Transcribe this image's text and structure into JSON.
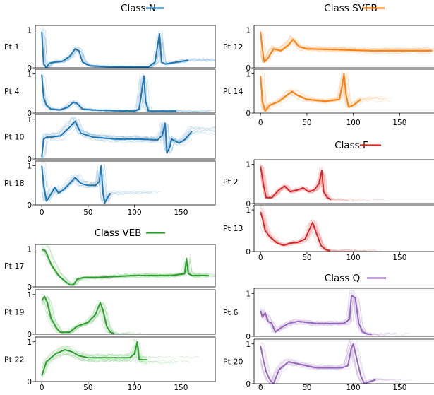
{
  "chart_data": [
    {
      "type": "line",
      "title": "Class N",
      "color": "#1f77b4",
      "xticks": [
        0,
        50,
        100,
        150
      ],
      "xlim": [
        -7,
        187
      ],
      "ylim": [
        0,
        1.12
      ],
      "yticks": [
        0,
        1
      ],
      "panels": [
        {
          "label": "Pt 1",
          "ylim": [
            0,
            1.12
          ],
          "mean": [
            [
              0,
              0.95
            ],
            [
              2,
              0.1
            ],
            [
              5,
              0.0
            ],
            [
              8,
              0.12
            ],
            [
              14,
              0.15
            ],
            [
              22,
              0.17
            ],
            [
              30,
              0.3
            ],
            [
              36,
              0.5
            ],
            [
              40,
              0.45
            ],
            [
              44,
              0.15
            ],
            [
              52,
              0.05
            ],
            [
              70,
              0.03
            ],
            [
              100,
              0.02
            ],
            [
              115,
              0.02
            ],
            [
              122,
              0.15
            ],
            [
              125,
              0.6
            ],
            [
              127,
              0.9
            ],
            [
              129,
              0.15
            ],
            [
              133,
              0.1
            ],
            [
              145,
              0.15
            ],
            [
              158,
              0.2
            ]
          ]
        },
        {
          "label": "Pt 4",
          "ylim": [
            0,
            1.12
          ],
          "mean": [
            [
              0,
              0.98
            ],
            [
              2,
              0.4
            ],
            [
              5,
              0.2
            ],
            [
              10,
              0.1
            ],
            [
              20,
              0.08
            ],
            [
              28,
              0.15
            ],
            [
              34,
              0.28
            ],
            [
              38,
              0.25
            ],
            [
              44,
              0.1
            ],
            [
              55,
              0.08
            ],
            [
              80,
              0.06
            ],
            [
              100,
              0.05
            ],
            [
              105,
              0.1
            ],
            [
              108,
              0.6
            ],
            [
              110,
              0.95
            ],
            [
              112,
              0.3
            ],
            [
              115,
              0.05
            ],
            [
              130,
              0.05
            ],
            [
              145,
              0.05
            ]
          ]
        },
        {
          "label": "Pt 10",
          "ylim": [
            0,
            1.12
          ],
          "mean": [
            [
              0,
              0.05
            ],
            [
              2,
              0.5
            ],
            [
              5,
              0.55
            ],
            [
              10,
              0.55
            ],
            [
              20,
              0.58
            ],
            [
              30,
              0.8
            ],
            [
              36,
              0.95
            ],
            [
              42,
              0.65
            ],
            [
              55,
              0.55
            ],
            [
              80,
              0.5
            ],
            [
              105,
              0.5
            ],
            [
              125,
              0.48
            ],
            [
              130,
              0.6
            ],
            [
              133,
              0.9
            ],
            [
              135,
              0.15
            ],
            [
              138,
              0.3
            ],
            [
              140,
              0.5
            ],
            [
              148,
              0.4
            ],
            [
              155,
              0.5
            ],
            [
              162,
              0.7
            ]
          ]
        },
        {
          "label": "Pt 18",
          "ylim": [
            0,
            1.12
          ],
          "mean": [
            [
              0,
              1.0
            ],
            [
              2,
              0.5
            ],
            [
              5,
              0.1
            ],
            [
              8,
              0.2
            ],
            [
              14,
              0.45
            ],
            [
              18,
              0.3
            ],
            [
              24,
              0.4
            ],
            [
              32,
              0.6
            ],
            [
              36,
              0.7
            ],
            [
              42,
              0.55
            ],
            [
              50,
              0.5
            ],
            [
              58,
              0.5
            ],
            [
              62,
              0.6
            ],
            [
              64,
              1.0
            ],
            [
              66,
              0.3
            ],
            [
              68,
              0.05
            ],
            [
              70,
              0.15
            ],
            [
              74,
              0.3
            ]
          ]
        }
      ]
    },
    {
      "type": "line",
      "title": "Class SVEB",
      "color": "#ff7f0e",
      "xticks": [
        0,
        50,
        100,
        150
      ],
      "xlim": [
        -7,
        187
      ],
      "ylim": [
        0,
        1.12
      ],
      "yticks": [
        0,
        1
      ],
      "panels": [
        {
          "label": "Pt 12",
          "ylim": [
            0,
            1.12
          ],
          "mean": [
            [
              0,
              0.95
            ],
            [
              2,
              0.5
            ],
            [
              4,
              0.15
            ],
            [
              8,
              0.25
            ],
            [
              14,
              0.5
            ],
            [
              22,
              0.45
            ],
            [
              30,
              0.6
            ],
            [
              35,
              0.75
            ],
            [
              42,
              0.55
            ],
            [
              50,
              0.5
            ],
            [
              80,
              0.48
            ],
            [
              120,
              0.45
            ],
            [
              150,
              0.45
            ],
            [
              185,
              0.45
            ]
          ]
        },
        {
          "label": "Pt 14",
          "ylim": [
            0,
            1.12
          ],
          "mean": [
            [
              0,
              0.95
            ],
            [
              2,
              0.3
            ],
            [
              5,
              0.05
            ],
            [
              10,
              0.2
            ],
            [
              20,
              0.3
            ],
            [
              28,
              0.45
            ],
            [
              34,
              0.55
            ],
            [
              40,
              0.45
            ],
            [
              50,
              0.35
            ],
            [
              70,
              0.3
            ],
            [
              85,
              0.35
            ],
            [
              88,
              0.7
            ],
            [
              90,
              1.0
            ],
            [
              92,
              0.5
            ],
            [
              95,
              0.15
            ],
            [
              100,
              0.2
            ],
            [
              108,
              0.35
            ]
          ]
        }
      ]
    },
    {
      "type": "line",
      "title": "Class F",
      "color": "#d62728",
      "xticks": [
        0,
        50,
        100,
        150
      ],
      "xlim": [
        -7,
        187
      ],
      "ylim": [
        0,
        1.12
      ],
      "yticks": [
        0,
        1
      ],
      "panels": [
        {
          "label": "Pt 2",
          "ylim": [
            0,
            1.12
          ],
          "mean": [
            [
              0,
              0.95
            ],
            [
              3,
              0.5
            ],
            [
              6,
              0.15
            ],
            [
              12,
              0.15
            ],
            [
              20,
              0.35
            ],
            [
              26,
              0.45
            ],
            [
              32,
              0.3
            ],
            [
              40,
              0.35
            ],
            [
              46,
              0.4
            ],
            [
              52,
              0.3
            ],
            [
              58,
              0.35
            ],
            [
              63,
              0.5
            ],
            [
              66,
              0.85
            ],
            [
              68,
              0.3
            ],
            [
              72,
              0.15
            ],
            [
              76,
              0.1
            ]
          ]
        },
        {
          "label": "Pt 13",
          "ylim": [
            0,
            1.12
          ],
          "mean": [
            [
              0,
              0.95
            ],
            [
              2,
              0.8
            ],
            [
              5,
              0.5
            ],
            [
              10,
              0.35
            ],
            [
              18,
              0.2
            ],
            [
              25,
              0.15
            ],
            [
              32,
              0.2
            ],
            [
              40,
              0.22
            ],
            [
              48,
              0.3
            ],
            [
              53,
              0.55
            ],
            [
              56,
              0.7
            ],
            [
              60,
              0.45
            ],
            [
              65,
              0.15
            ],
            [
              70,
              0.05
            ],
            [
              75,
              0.02
            ]
          ]
        }
      ]
    },
    {
      "type": "line",
      "title": "Class VEB",
      "color": "#2ca02c",
      "xticks": [
        0,
        50,
        100,
        150
      ],
      "xlim": [
        -7,
        187
      ],
      "ylim": [
        0,
        1.12
      ],
      "yticks": [
        0,
        1
      ],
      "panels": [
        {
          "label": "Pt 17",
          "ylim": [
            0,
            1.12
          ],
          "mean": [
            [
              0,
              1.0
            ],
            [
              4,
              0.95
            ],
            [
              10,
              0.6
            ],
            [
              18,
              0.3
            ],
            [
              25,
              0.15
            ],
            [
              30,
              0.05
            ],
            [
              34,
              0.05
            ],
            [
              38,
              0.2
            ],
            [
              45,
              0.25
            ],
            [
              60,
              0.25
            ],
            [
              100,
              0.3
            ],
            [
              140,
              0.3
            ],
            [
              154,
              0.35
            ],
            [
              156,
              0.75
            ],
            [
              158,
              0.35
            ],
            [
              162,
              0.3
            ],
            [
              180,
              0.3
            ]
          ]
        },
        {
          "label": "Pt 19",
          "ylim": [
            0,
            1.12
          ],
          "mean": [
            [
              0,
              0.85
            ],
            [
              3,
              0.95
            ],
            [
              6,
              0.8
            ],
            [
              10,
              0.4
            ],
            [
              16,
              0.15
            ],
            [
              20,
              0.05
            ],
            [
              30,
              0.05
            ],
            [
              38,
              0.2
            ],
            [
              50,
              0.3
            ],
            [
              58,
              0.5
            ],
            [
              63,
              0.8
            ],
            [
              66,
              0.6
            ],
            [
              70,
              0.2
            ],
            [
              74,
              0.05
            ],
            [
              78,
              0.02
            ]
          ]
        },
        {
          "label": "Pt 22",
          "ylim": [
            0,
            1.12
          ],
          "mean": [
            [
              0,
              0.15
            ],
            [
              5,
              0.5
            ],
            [
              15,
              0.7
            ],
            [
              25,
              0.8
            ],
            [
              32,
              0.75
            ],
            [
              40,
              0.65
            ],
            [
              50,
              0.6
            ],
            [
              70,
              0.6
            ],
            [
              95,
              0.6
            ],
            [
              100,
              0.7
            ],
            [
              103,
              1.0
            ],
            [
              105,
              0.55
            ],
            [
              110,
              0.55
            ],
            [
              114,
              0.55
            ]
          ]
        }
      ]
    },
    {
      "type": "line",
      "title": "Class Q",
      "color": "#9467bd",
      "xticks": [
        0,
        50,
        100,
        150
      ],
      "xlim": [
        -7,
        187
      ],
      "ylim": [
        0,
        1.12
      ],
      "yticks": [
        0,
        1
      ],
      "panels": [
        {
          "label": "Pt 6",
          "ylim": [
            0,
            1.12
          ],
          "mean": [
            [
              0,
              0.6
            ],
            [
              2,
              0.45
            ],
            [
              5,
              0.55
            ],
            [
              8,
              0.35
            ],
            [
              12,
              0.3
            ],
            [
              16,
              0.1
            ],
            [
              22,
              0.2
            ],
            [
              30,
              0.3
            ],
            [
              40,
              0.35
            ],
            [
              60,
              0.3
            ],
            [
              90,
              0.3
            ],
            [
              96,
              0.4
            ],
            [
              98,
              0.95
            ],
            [
              102,
              0.9
            ],
            [
              106,
              0.3
            ],
            [
              110,
              0.1
            ],
            [
              116,
              0.05
            ],
            [
              120,
              0.05
            ]
          ]
        },
        {
          "label": "Pt 20",
          "ylim": [
            0,
            1.12
          ],
          "mean": [
            [
              0,
              0.95
            ],
            [
              3,
              0.6
            ],
            [
              6,
              0.3
            ],
            [
              10,
              0.1
            ],
            [
              14,
              0.0
            ],
            [
              20,
              0.35
            ],
            [
              30,
              0.55
            ],
            [
              40,
              0.5
            ],
            [
              60,
              0.4
            ],
            [
              88,
              0.4
            ],
            [
              94,
              0.45
            ],
            [
              98,
              0.9
            ],
            [
              100,
              1.0
            ],
            [
              104,
              0.6
            ],
            [
              108,
              0.2
            ],
            [
              112,
              0.0
            ],
            [
              118,
              0.05
            ],
            [
              124,
              0.1
            ]
          ]
        }
      ]
    }
  ]
}
